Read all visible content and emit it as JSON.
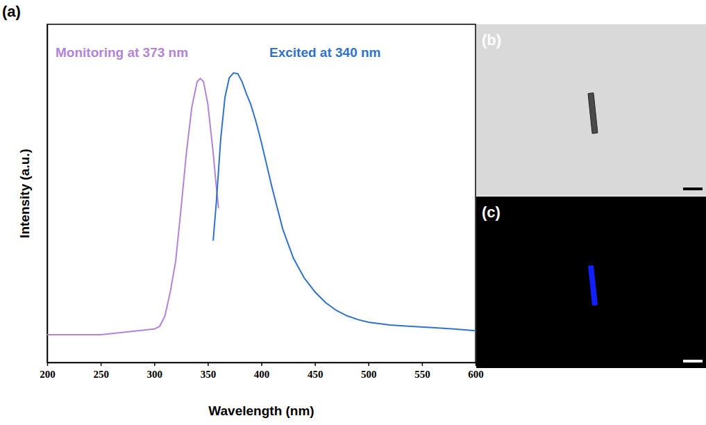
{
  "chart_data": [
    {
      "type": "line",
      "title": "(a)",
      "x_label": "Wavelength (nm)",
      "y_label": "Intensity (a.u.)",
      "xlim": [
        200,
        600
      ],
      "xticks": [
        200,
        250,
        300,
        350,
        400,
        450,
        500,
        550,
        600
      ],
      "ylim": [
        0,
        1
      ],
      "tick_labels": "x",
      "grid": false,
      "series": [
        {
          "name": "Monitoring at 373 nm",
          "color": "#b383d9",
          "x": [
            200,
            250,
            300,
            305,
            310,
            315,
            320,
            325,
            330,
            335,
            340,
            343,
            346,
            350,
            355,
            358,
            360
          ],
          "values": [
            0.082,
            0.082,
            0.099,
            0.107,
            0.138,
            0.21,
            0.3,
            0.456,
            0.62,
            0.754,
            0.83,
            0.84,
            0.83,
            0.764,
            0.62,
            0.517,
            0.456
          ]
        },
        {
          "name": "Excited at 340 nm",
          "color": "#2f72cc",
          "x": [
            355,
            358,
            362,
            366,
            370,
            374,
            378,
            382,
            386,
            390,
            395,
            400,
            410,
            420,
            430,
            440,
            450,
            460,
            470,
            480,
            490,
            500,
            520,
            540,
            560,
            580,
            600
          ],
          "values": [
            0.36,
            0.476,
            0.66,
            0.784,
            0.842,
            0.856,
            0.854,
            0.83,
            0.795,
            0.764,
            0.712,
            0.651,
            0.517,
            0.394,
            0.308,
            0.25,
            0.209,
            0.177,
            0.154,
            0.138,
            0.127,
            0.119,
            0.111,
            0.107,
            0.103,
            0.099,
            0.094
          ]
        }
      ]
    },
    {
      "type": "brightfield",
      "title": "(b)",
      "color": "#4a4a4a"
    },
    {
      "type": "fluorescence",
      "title": "(c)",
      "color": "#1020ff"
    }
  ]
}
